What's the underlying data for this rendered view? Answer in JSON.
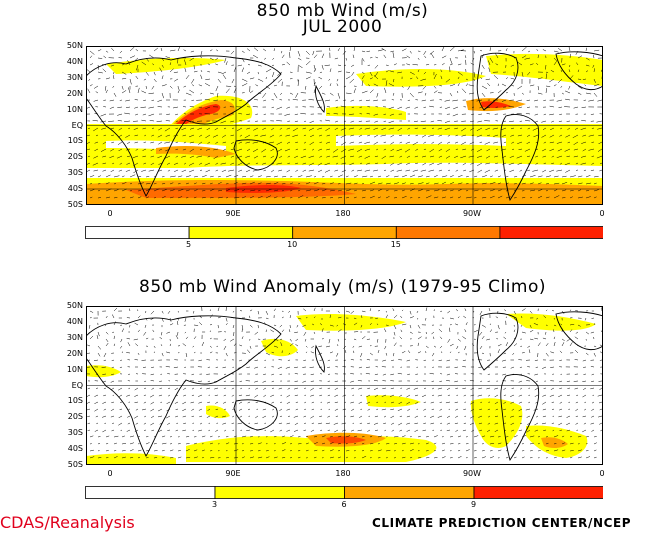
{
  "top_panel": {
    "title_line1": "850 mb Wind (m/s)",
    "title_line2": "JUL 2000",
    "lat_labels": [
      "50N",
      "40N",
      "30N",
      "20N",
      "10N",
      "EQ",
      "10S",
      "20S",
      "30S",
      "40S",
      "50S"
    ],
    "lon_labels": [
      "0",
      "90E",
      "180",
      "90W",
      "0"
    ],
    "colorbar": {
      "ticks": [
        "5",
        "10",
        "15"
      ],
      "colors": [
        "#ffffff",
        "#ffff00",
        "#ffa500",
        "#ff7800",
        "#ff2000"
      ]
    }
  },
  "bottom_panel": {
    "title": "850 mb Wind Anomaly (m/s) (1979-95 Climo)",
    "lat_labels": [
      "50N",
      "40N",
      "30N",
      "20N",
      "10N",
      "EQ",
      "10S",
      "20S",
      "30S",
      "40S",
      "50S"
    ],
    "lon_labels": [
      "0",
      "90E",
      "180",
      "90W",
      "0"
    ],
    "colorbar": {
      "ticks": [
        "3",
        "6",
        "9"
      ],
      "colors": [
        "#ffffff",
        "#ffff00",
        "#ffa500",
        "#ff2000"
      ]
    }
  },
  "footer": {
    "left": "CDAS/Reanalysis",
    "right": "CLIMATE PREDICTION CENTER/NCEP"
  }
}
